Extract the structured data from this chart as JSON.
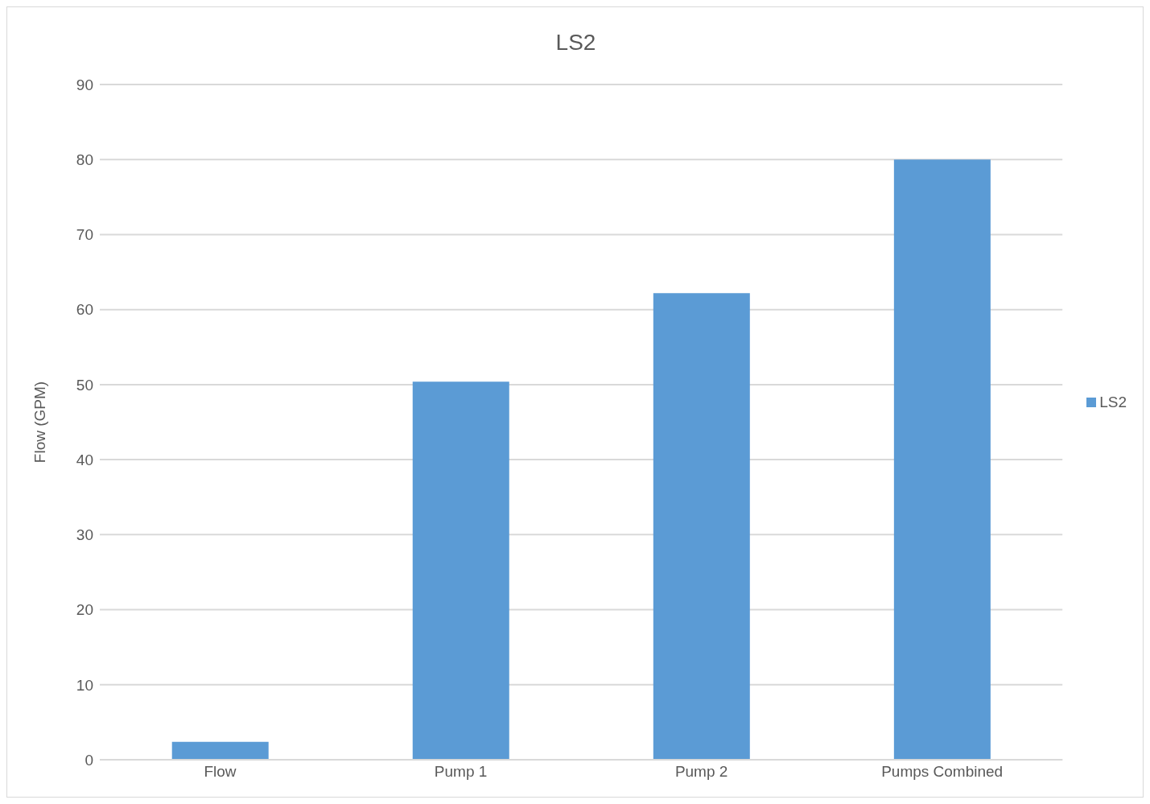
{
  "chart_data": {
    "type": "bar",
    "title": "LS2",
    "ylabel": "Flow (GPM)",
    "categories": [
      "Flow",
      "Pump 1",
      "Pump 2",
      "Pumps Combined"
    ],
    "series": [
      {
        "name": "LS2",
        "color": "#5b9bd5",
        "values": [
          2.4,
          50.4,
          62.2,
          80
        ]
      }
    ],
    "ylim": [
      0,
      90
    ],
    "yticks": [
      0,
      10,
      20,
      30,
      40,
      50,
      60,
      70,
      80,
      90
    ],
    "grid": "y",
    "legend": "right"
  }
}
